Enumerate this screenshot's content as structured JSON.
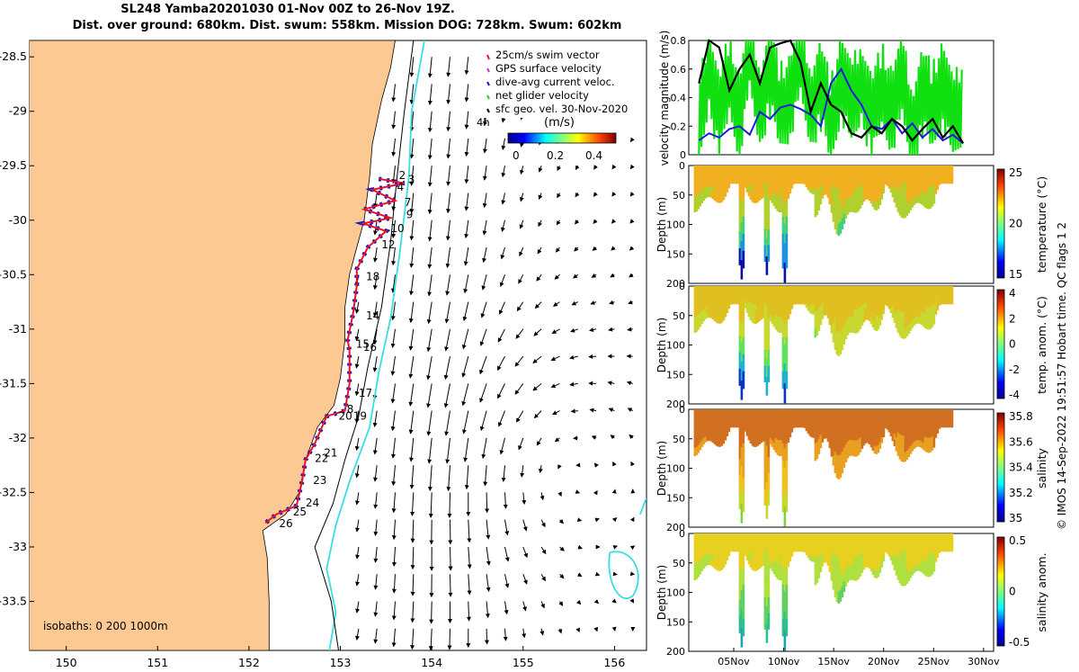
{
  "title": {
    "line1": "SL248 Yamba20201030 01-Nov 00Z to 26-Nov 19Z.",
    "line2": "Dist. over ground: 680km. Dist. swum: 558km. Mission DOG: 728km. Swum: 602km"
  },
  "colors": {
    "land": "#fcc993",
    "track": "#e8141e",
    "current": "#1818c8",
    "isobath_cyan": "#3cdde0",
    "black": "#000000",
    "green": "#10e010",
    "blue": "#1a1ad8"
  },
  "chart_data": [
    {
      "type": "map",
      "title": "Glider track and surface geostrophic velocity",
      "xlim": [
        149.6,
        156.35
      ],
      "ylim": [
        -33.95,
        -28.35
      ],
      "xticks": [
        150,
        151,
        152,
        153,
        154,
        155,
        156
      ],
      "yticks": [
        -28.5,
        -29,
        -29.5,
        -30,
        -30.5,
        -31,
        -31.5,
        -32,
        -32.5,
        -33,
        -33.5
      ],
      "legend": [
        "25cm/s swim vector",
        "GPS surface velocity",
        "dive-avg current veloc.",
        "net glider velocity",
        "sfc geo. vel. 30-Nov-2020"
      ],
      "scale_label": "4h",
      "colorbar": {
        "label": "(m/s)",
        "ticks": [
          "0",
          "0.2",
          "0.4"
        ]
      },
      "isobath_label": "isobaths: 0   200  1000m",
      "track": [
        [
          153.42,
          -29.62
        ],
        [
          153.7,
          -29.66
        ],
        [
          153.35,
          -29.72
        ],
        [
          153.6,
          -29.82
        ],
        [
          153.26,
          -29.9
        ],
        [
          153.55,
          -29.98
        ],
        [
          153.25,
          -30.03
        ],
        [
          153.5,
          -30.1
        ],
        [
          153.3,
          -30.25
        ],
        [
          153.18,
          -30.45
        ],
        [
          153.18,
          -30.6
        ],
        [
          153.14,
          -30.85
        ],
        [
          153.08,
          -31.1
        ],
        [
          153.1,
          -31.2
        ],
        [
          153.1,
          -31.5
        ],
        [
          153.05,
          -31.75
        ],
        [
          152.85,
          -31.8
        ],
        [
          152.72,
          -32.05
        ],
        [
          152.62,
          -32.2
        ],
        [
          152.58,
          -32.4
        ],
        [
          152.52,
          -32.62
        ],
        [
          152.3,
          -32.7
        ],
        [
          152.18,
          -32.78
        ]
      ],
      "day_labels": [
        {
          "label": "2",
          "lon": 153.64,
          "lat": -29.62
        },
        {
          "label": "3",
          "lon": 153.74,
          "lat": -29.66
        },
        {
          "label": "4",
          "lon": 153.62,
          "lat": -29.73
        },
        {
          "label": "7",
          "lon": 153.7,
          "lat": -29.87
        },
        {
          "label": "9",
          "lon": 153.72,
          "lat": -29.98
        },
        {
          "label": "10",
          "lon": 153.55,
          "lat": -30.11
        },
        {
          "label": "12",
          "lon": 153.45,
          "lat": -30.26
        },
        {
          "label": "18",
          "lon": 153.28,
          "lat": -30.55
        },
        {
          "label": "14",
          "lon": 153.28,
          "lat": -30.91
        },
        {
          "label": "15",
          "lon": 153.17,
          "lat": -31.17
        },
        {
          "label": "16",
          "lon": 153.25,
          "lat": -31.2
        },
        {
          "label": "17",
          "lon": 153.2,
          "lat": -31.62
        },
        {
          "label": "8",
          "lon": 153.07,
          "lat": -31.77
        },
        {
          "label": "20",
          "lon": 152.98,
          "lat": -31.83
        },
        {
          "label": "19",
          "lon": 153.14,
          "lat": -31.83
        },
        {
          "label": "21",
          "lon": 152.82,
          "lat": -32.17
        },
        {
          "label": "22",
          "lon": 152.72,
          "lat": -32.22
        },
        {
          "label": "23",
          "lon": 152.7,
          "lat": -32.42
        },
        {
          "label": "24",
          "lon": 152.62,
          "lat": -32.63
        },
        {
          "label": "25",
          "lon": 152.48,
          "lat": -32.71
        },
        {
          "label": "26",
          "lon": 152.33,
          "lat": -32.82
        }
      ],
      "coast": [
        [
          152.22,
          -33.95
        ],
        [
          152.22,
          -33.5
        ],
        [
          152.2,
          -33.1
        ],
        [
          152.15,
          -32.85
        ],
        [
          152.4,
          -32.7
        ],
        [
          152.55,
          -32.5
        ],
        [
          152.62,
          -32.2
        ],
        [
          152.75,
          -31.9
        ],
        [
          152.93,
          -31.7
        ],
        [
          153.0,
          -31.45
        ],
        [
          153.05,
          -31.1
        ],
        [
          153.05,
          -30.8
        ],
        [
          153.1,
          -30.5
        ],
        [
          153.18,
          -30.25
        ],
        [
          153.26,
          -30.0
        ],
        [
          153.32,
          -29.6
        ],
        [
          153.35,
          -29.3
        ],
        [
          153.45,
          -28.9
        ],
        [
          153.55,
          -28.6
        ],
        [
          153.6,
          -28.35
        ]
      ],
      "isobath_200": [
        [
          152.98,
          -33.95
        ],
        [
          152.9,
          -33.5
        ],
        [
          152.72,
          -33.0
        ],
        [
          152.92,
          -32.6
        ],
        [
          153.05,
          -32.2
        ],
        [
          153.2,
          -31.8
        ],
        [
          153.3,
          -31.35
        ],
        [
          153.45,
          -30.8
        ],
        [
          153.55,
          -30.2
        ],
        [
          153.62,
          -29.6
        ],
        [
          153.7,
          -29.0
        ],
        [
          153.8,
          -28.35
        ]
      ],
      "isobath_1000": [
        [
          152.88,
          -33.95
        ],
        [
          152.95,
          -33.6
        ],
        [
          152.85,
          -33.2
        ],
        [
          152.95,
          -32.8
        ],
        [
          153.1,
          -32.4
        ],
        [
          153.32,
          -31.9
        ],
        [
          153.42,
          -31.4
        ],
        [
          153.55,
          -30.9
        ],
        [
          153.65,
          -30.3
        ],
        [
          153.75,
          -29.6
        ],
        [
          153.78,
          -29.0
        ],
        [
          153.92,
          -28.35
        ]
      ],
      "isobath_labels": [
        "0",
        "200",
        "1000m"
      ]
    },
    {
      "type": "line",
      "ylabel": "velocity magnitude (m/s)",
      "ylim": [
        0,
        0.8
      ],
      "yticks": [
        0,
        0.2,
        0.4,
        0.6,
        0.8
      ],
      "xlim_days": [
        0,
        30
      ],
      "series": [
        {
          "name": "GPS surface velocity / dive-avg",
          "color": "#10e010",
          "x": [
            1,
            2,
            3,
            4,
            5,
            6,
            7,
            8,
            9,
            10,
            11,
            12,
            13,
            14,
            15,
            16,
            17,
            18,
            19,
            20,
            21,
            22,
            23,
            24,
            25,
            26,
            27
          ],
          "y": [
            0.15,
            0.65,
            0.25,
            0.55,
            0.3,
            0.7,
            0.35,
            0.6,
            0.3,
            0.45,
            0.65,
            0.35,
            0.5,
            0.2,
            0.6,
            0.3,
            0.55,
            0.25,
            0.45,
            0.35,
            0.5,
            0.2,
            0.45,
            0.3,
            0.55,
            0.2,
            0.4
          ]
        },
        {
          "name": "net glider velocity",
          "color": "#1a1ad8",
          "x": [
            1,
            2,
            3,
            4,
            5,
            6,
            7,
            8,
            9,
            10,
            11,
            12,
            13,
            14,
            15,
            16,
            17,
            18,
            19,
            20,
            21,
            22,
            23,
            24,
            25,
            26,
            27
          ],
          "y": [
            0.1,
            0.15,
            0.12,
            0.18,
            0.2,
            0.14,
            0.3,
            0.25,
            0.33,
            0.35,
            0.32,
            0.28,
            0.2,
            0.5,
            0.6,
            0.45,
            0.35,
            0.2,
            0.18,
            0.25,
            0.15,
            0.22,
            0.12,
            0.18,
            0.1,
            0.14,
            0.08
          ]
        },
        {
          "name": "sfc geo. vel.",
          "color": "#000000",
          "x": [
            1,
            2,
            3,
            4,
            5,
            6,
            7,
            8,
            9,
            10,
            11,
            12,
            13,
            14,
            15,
            16,
            17,
            18,
            19,
            20,
            21,
            22,
            23,
            24,
            25,
            26,
            27
          ],
          "y": [
            0.5,
            0.8,
            0.75,
            0.45,
            0.6,
            0.7,
            0.5,
            0.75,
            0.78,
            0.8,
            0.65,
            0.3,
            0.5,
            0.35,
            0.3,
            0.15,
            0.12,
            0.2,
            0.15,
            0.25,
            0.2,
            0.1,
            0.18,
            0.25,
            0.12,
            0.2,
            0.08
          ]
        }
      ]
    },
    {
      "type": "heatmap",
      "panels": [
        {
          "ylabel": "Depth (m)",
          "cbar_label": "temperature (°C)",
          "cbar_ticks": [
            "25",
            "20",
            "15"
          ],
          "clim": [
            12,
            26
          ]
        },
        {
          "ylabel": "Depth (m)",
          "cbar_label": "temp. anom. (°C)",
          "cbar_ticks": [
            "4",
            "2",
            "0",
            "-2",
            "-4"
          ],
          "clim": [
            -4,
            4
          ]
        },
        {
          "ylabel": "Depth (m)",
          "cbar_label": "salinity",
          "cbar_ticks": [
            "35.8",
            "35.6",
            "35.4",
            "35.2",
            "35"
          ],
          "clim": [
            34.9,
            35.8
          ]
        },
        {
          "ylabel": "Depth (m)",
          "cbar_label": "salinity anom.",
          "cbar_ticks": [
            "0.5",
            "0",
            "-0.5"
          ],
          "clim": [
            -0.5,
            0.5
          ]
        }
      ],
      "yticks": [
        "0",
        "50",
        "100",
        "150",
        "200"
      ],
      "ylim": [
        0,
        200
      ],
      "xticks": [
        "05Nov",
        "10Nov",
        "15Nov",
        "20Nov",
        "25Nov",
        "30Nov"
      ],
      "xtick_days": [
        5,
        10,
        15,
        20,
        25,
        30
      ],
      "xlim_days": [
        0.5,
        31
      ]
    }
  ],
  "footer": "© IMOS 14-Sep-2022 19:51:57 Hobart time. QC flags 1  2"
}
